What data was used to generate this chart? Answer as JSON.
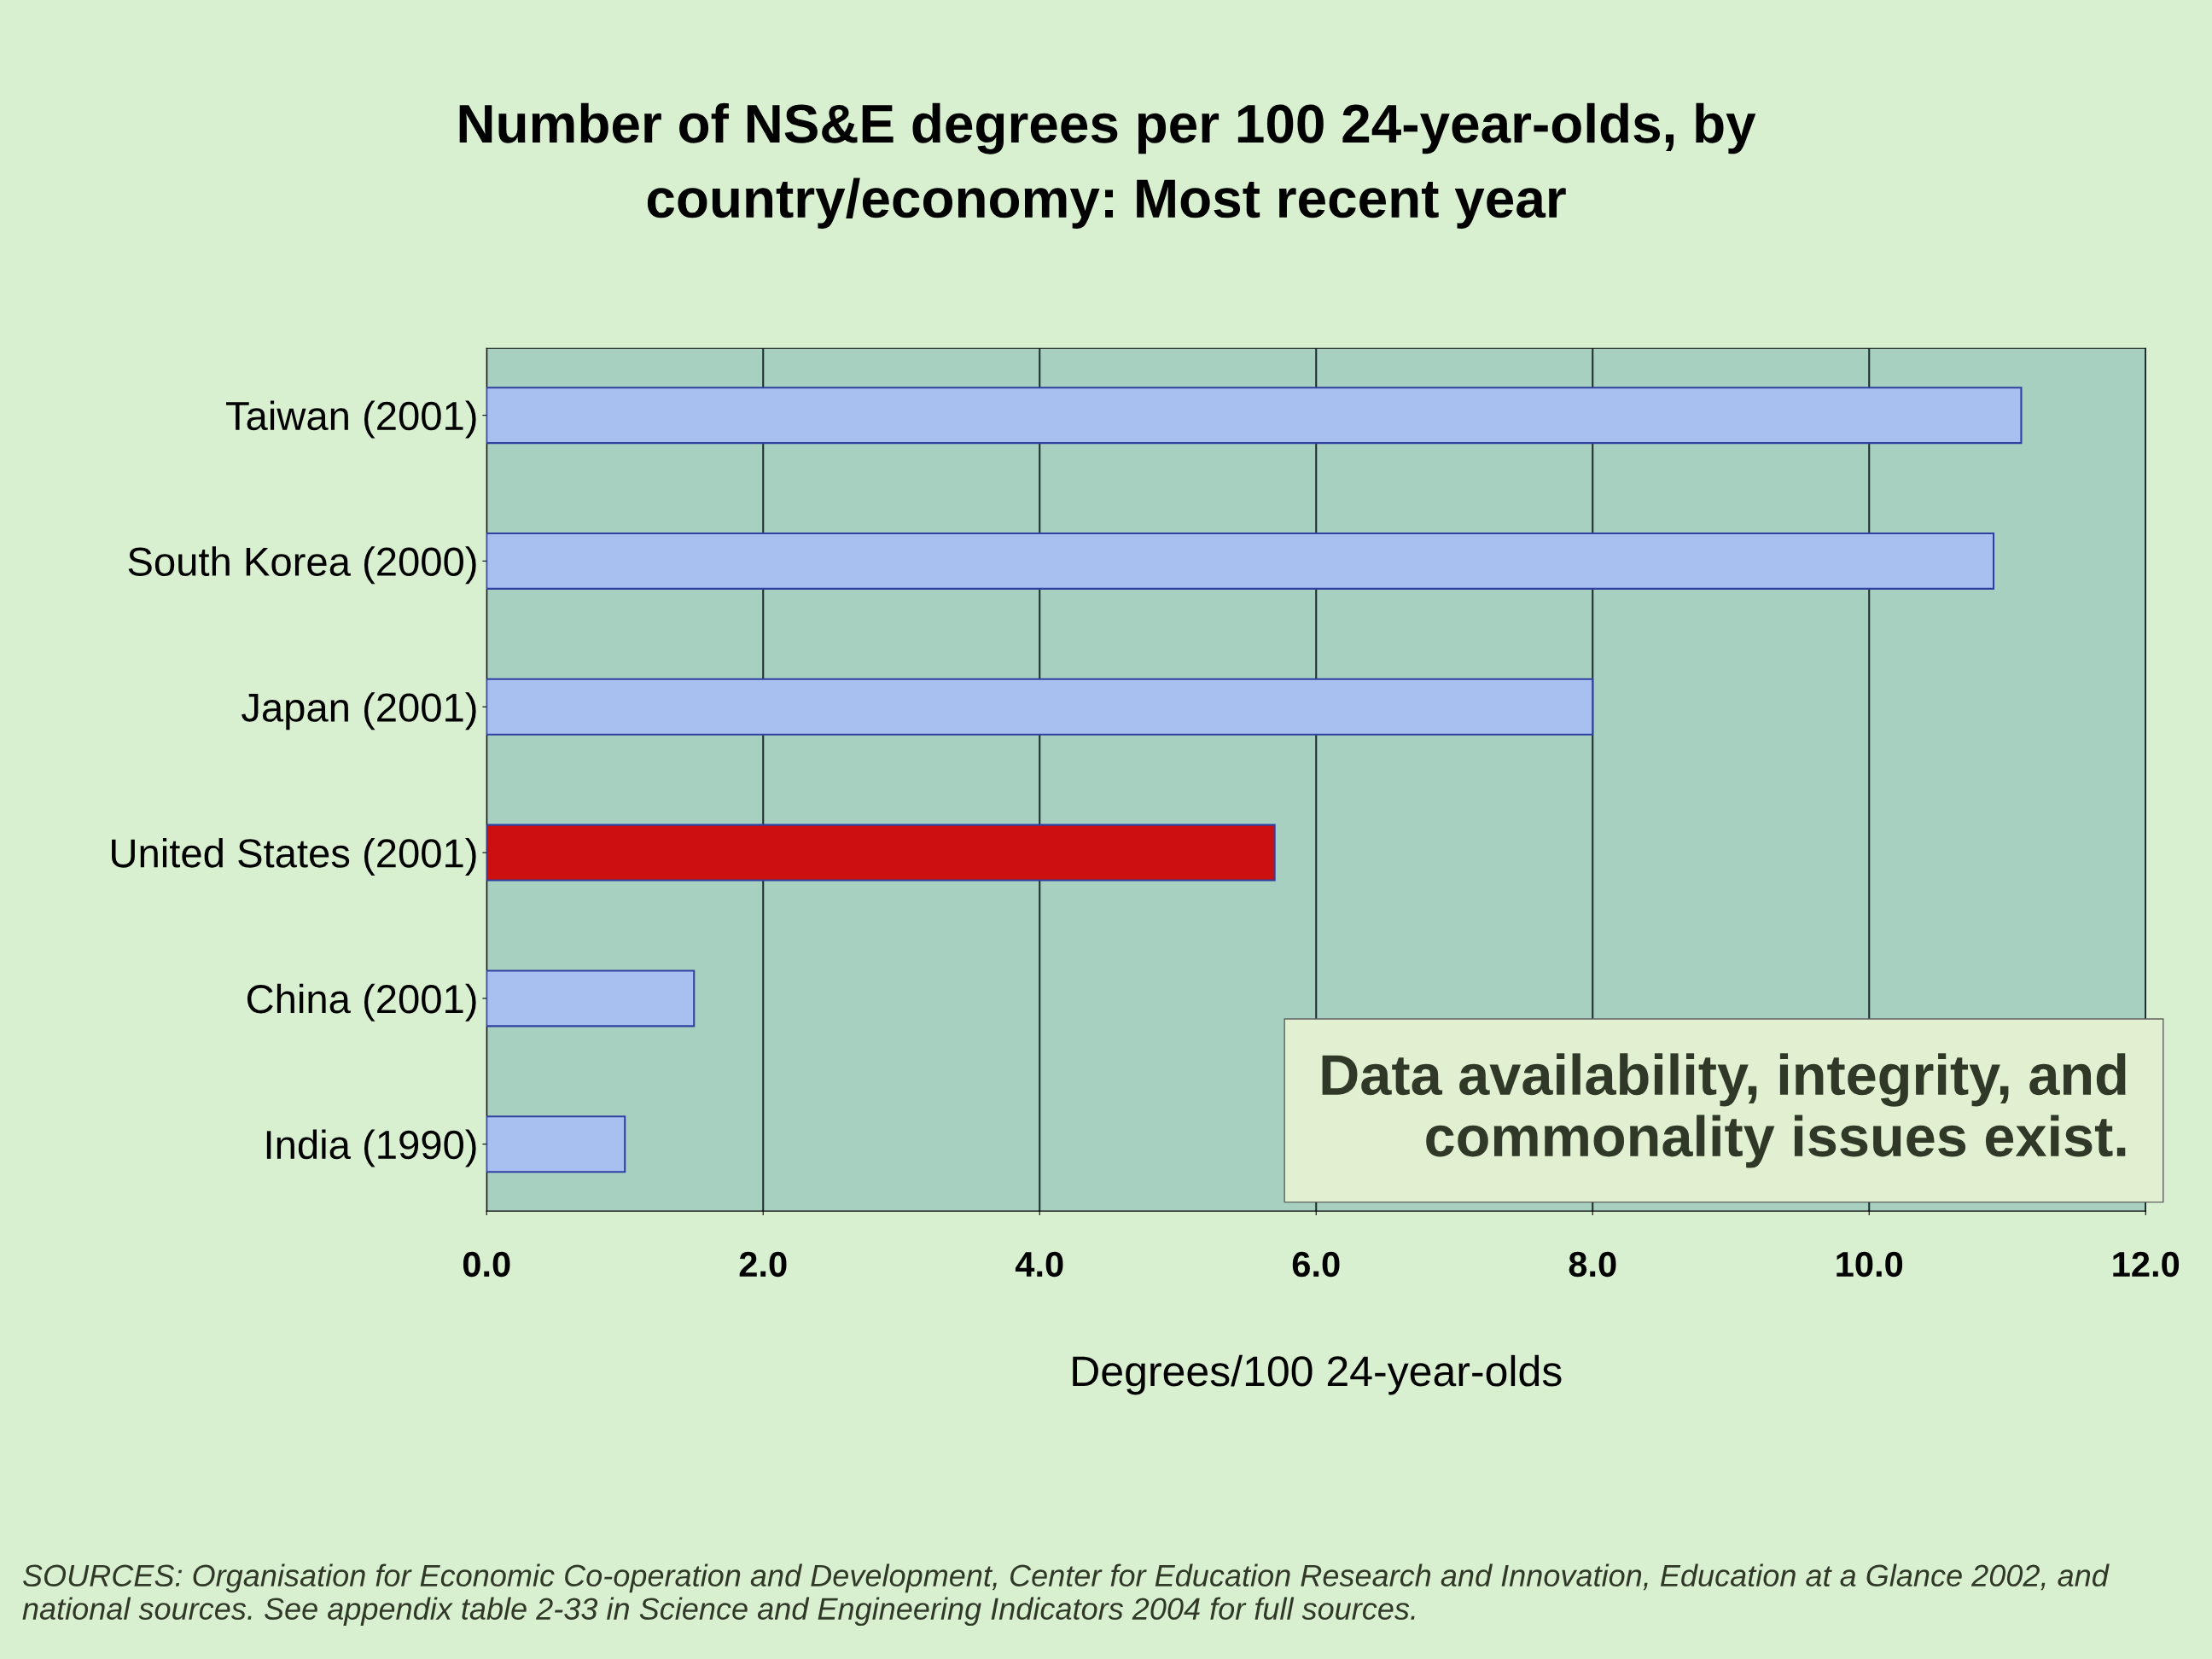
{
  "chart_data": {
    "type": "bar",
    "orientation": "horizontal",
    "title": "Number of NS&E degrees per 100 24-year-olds, by\ncountry/economy: Most recent year",
    "xlabel": "Degrees/100 24-year-olds",
    "categories": [
      "Taiwan (2001)",
      "South Korea (2000)",
      "Japan (2001)",
      "United States (2001)",
      "China (2001)",
      "India (1990)"
    ],
    "values": [
      11.1,
      10.9,
      8.0,
      5.7,
      1.5,
      1.0
    ],
    "colors": [
      "#a8c0f0",
      "#a8c0f0",
      "#a8c0f0",
      "#cc1010",
      "#a8c0f0",
      "#a8c0f0"
    ],
    "xlim": [
      0,
      12
    ],
    "xticks": [
      {
        "value": 0,
        "label": "0.0"
      },
      {
        "value": 2,
        "label": "2.0"
      },
      {
        "value": 4,
        "label": "4.0"
      },
      {
        "value": 6,
        "label": "6.0"
      },
      {
        "value": 8,
        "label": "8.0"
      },
      {
        "value": 10,
        "label": "10.0"
      },
      {
        "value": 12,
        "label": "12.0"
      }
    ],
    "grid": "x",
    "annotations": [
      "Data availability, integrity, and\ncommonality issues exist.",
      "SOURCES: Organisation for Economic Co-operation and Development, Center for Education Research and Innovation, Education at a Glance 2002, and national sources. See appendix table 2-33 in Science and Engineering Indicators 2004 for full sources."
    ]
  }
}
